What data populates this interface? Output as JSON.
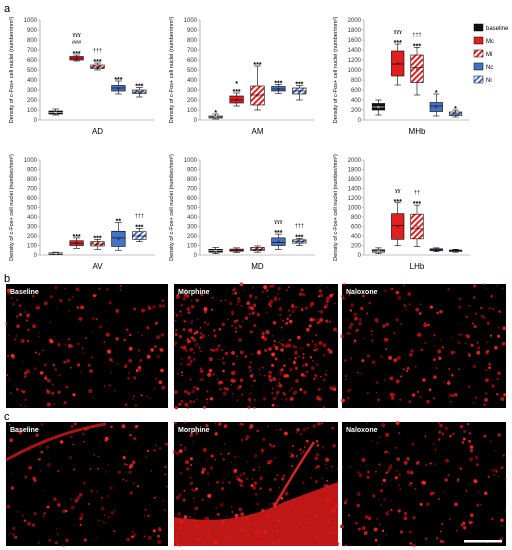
{
  "figure": {
    "panel_a_label": "a",
    "panel_b_label": "b",
    "panel_c_label": "c",
    "ylabel": "Density of c-Fos+ cell nuclei (number/mm²)"
  },
  "legend": [
    {
      "name": "baseline",
      "color": "#111111",
      "pattern": "solid"
    },
    {
      "name": "Mc",
      "color": "#e02020",
      "pattern": "solid"
    },
    {
      "name": "Mi",
      "color": "#e02020",
      "pattern": "hatch"
    },
    {
      "name": "Nc",
      "color": "#4472c4",
      "pattern": "solid"
    },
    {
      "name": "Ni",
      "color": "#4472c4",
      "pattern": "hatch"
    }
  ],
  "chart_data": [
    {
      "type": "box",
      "region": "AD",
      "ylim": [
        0,
        1000
      ],
      "yticks": [
        0,
        100,
        200,
        300,
        400,
        500,
        600,
        700,
        800,
        900,
        1000
      ],
      "groups": [
        {
          "name": "baseline",
          "median": 75,
          "q1": 60,
          "q3": 90,
          "min": 50,
          "max": 110,
          "sig": []
        },
        {
          "name": "Mc",
          "median": 620,
          "q1": 600,
          "q3": 635,
          "min": 590,
          "max": 650,
          "sig": [
            "***",
            "###",
            "ɣɣɣ"
          ]
        },
        {
          "name": "Mi",
          "median": 530,
          "q1": 515,
          "q3": 550,
          "min": 500,
          "max": 570,
          "sig": [
            "***",
            "†††"
          ]
        },
        {
          "name": "Nc",
          "median": 320,
          "q1": 290,
          "q3": 345,
          "min": 260,
          "max": 390,
          "sig": [
            "***"
          ]
        },
        {
          "name": "Ni",
          "median": 280,
          "q1": 265,
          "q3": 300,
          "min": 230,
          "max": 325,
          "sig": [
            "***"
          ]
        }
      ]
    },
    {
      "type": "box",
      "region": "AM",
      "ylim": [
        0,
        1000
      ],
      "yticks": [
        0,
        100,
        200,
        300,
        400,
        500,
        600,
        700,
        800,
        900,
        1000
      ],
      "groups": [
        {
          "name": "baseline",
          "median": 30,
          "q1": 20,
          "q3": 40,
          "min": 10,
          "max": 60,
          "sig": [
            "*"
          ]
        },
        {
          "name": "Mc",
          "median": 200,
          "q1": 170,
          "q3": 240,
          "min": 140,
          "max": 270,
          "sig": [
            "***",
            "*"
          ]
        },
        {
          "name": "Mi",
          "median": 250,
          "q1": 150,
          "q3": 340,
          "min": 100,
          "max": 540,
          "sig": [
            "***"
          ]
        },
        {
          "name": "Nc",
          "median": 310,
          "q1": 290,
          "q3": 335,
          "min": 265,
          "max": 355,
          "sig": [
            "***"
          ]
        },
        {
          "name": "Ni",
          "median": 290,
          "q1": 260,
          "q3": 320,
          "min": 200,
          "max": 345,
          "sig": [
            "***"
          ]
        }
      ]
    },
    {
      "type": "box",
      "region": "MHb",
      "ylim": [
        0,
        2000
      ],
      "yticks": [
        0,
        200,
        400,
        600,
        800,
        1000,
        1200,
        1400,
        1600,
        1800,
        2000
      ],
      "groups": [
        {
          "name": "baseline",
          "median": 260,
          "q1": 200,
          "q3": 330,
          "min": 100,
          "max": 400,
          "sig": []
        },
        {
          "name": "Mc",
          "median": 1120,
          "q1": 880,
          "q3": 1380,
          "min": 700,
          "max": 1520,
          "sig": [
            "***",
            "ɣɣɣ"
          ]
        },
        {
          "name": "Mi",
          "median": 1050,
          "q1": 750,
          "q3": 1300,
          "min": 500,
          "max": 1450,
          "sig": [
            "***",
            "†††"
          ]
        },
        {
          "name": "Nc",
          "median": 280,
          "q1": 170,
          "q3": 350,
          "min": 80,
          "max": 520,
          "sig": [
            "*"
          ]
        },
        {
          "name": "Ni",
          "median": 120,
          "q1": 90,
          "q3": 160,
          "min": 60,
          "max": 200,
          "sig": [
            "*"
          ]
        }
      ]
    },
    {
      "type": "box",
      "region": "AV",
      "ylim": [
        0,
        1000
      ],
      "yticks": [
        0,
        100,
        200,
        300,
        400,
        500,
        600,
        700,
        800,
        900,
        1000
      ],
      "groups": [
        {
          "name": "baseline",
          "median": 15,
          "q1": 10,
          "q3": 22,
          "min": 5,
          "max": 30,
          "sig": []
        },
        {
          "name": "Mc",
          "median": 125,
          "q1": 100,
          "q3": 150,
          "min": 70,
          "max": 180,
          "sig": [
            "***"
          ]
        },
        {
          "name": "Mi",
          "median": 115,
          "q1": 95,
          "q3": 140,
          "min": 60,
          "max": 165,
          "sig": [
            "***"
          ]
        },
        {
          "name": "Nc",
          "median": 180,
          "q1": 90,
          "q3": 250,
          "min": 50,
          "max": 340,
          "sig": [
            "**"
          ]
        },
        {
          "name": "Ni",
          "median": 200,
          "q1": 165,
          "q3": 245,
          "min": 140,
          "max": 280,
          "sig": [
            "***",
            "†††"
          ]
        }
      ]
    },
    {
      "type": "box",
      "region": "MD",
      "ylim": [
        0,
        1000
      ],
      "yticks": [
        0,
        100,
        200,
        300,
        400,
        500,
        600,
        700,
        800,
        900,
        1000
      ],
      "groups": [
        {
          "name": "baseline",
          "median": 45,
          "q1": 30,
          "q3": 60,
          "min": 15,
          "max": 80,
          "sig": []
        },
        {
          "name": "Mc",
          "median": 50,
          "q1": 40,
          "q3": 62,
          "min": 25,
          "max": 75,
          "sig": []
        },
        {
          "name": "Mi",
          "median": 60,
          "q1": 45,
          "q3": 80,
          "min": 30,
          "max": 95,
          "sig": []
        },
        {
          "name": "Nc",
          "median": 130,
          "q1": 100,
          "q3": 180,
          "min": 60,
          "max": 220,
          "sig": [
            "***",
            "ɣɣɣ"
          ]
        },
        {
          "name": "Ni",
          "median": 145,
          "q1": 125,
          "q3": 160,
          "min": 100,
          "max": 175,
          "sig": [
            "***",
            "†††"
          ]
        }
      ]
    },
    {
      "type": "box",
      "region": "LHb",
      "ylim": [
        0,
        2000
      ],
      "yticks": [
        0,
        200,
        400,
        600,
        800,
        1000,
        1200,
        1400,
        1600,
        1800,
        2000
      ],
      "groups": [
        {
          "name": "baseline",
          "median": 80,
          "q1": 60,
          "q3": 110,
          "min": 30,
          "max": 150,
          "sig": []
        },
        {
          "name": "Mc",
          "median": 620,
          "q1": 330,
          "q3": 870,
          "min": 200,
          "max": 1100,
          "sig": [
            "***",
            "ɣɣ"
          ]
        },
        {
          "name": "Mi",
          "median": 550,
          "q1": 340,
          "q3": 860,
          "min": 180,
          "max": 1050,
          "sig": [
            "***",
            "††"
          ]
        },
        {
          "name": "Nc",
          "median": 110,
          "q1": 90,
          "q3": 130,
          "min": 70,
          "max": 150,
          "sig": []
        },
        {
          "name": "Ni",
          "median": 90,
          "q1": 75,
          "q3": 105,
          "min": 60,
          "max": 120,
          "sig": []
        }
      ]
    }
  ],
  "micrographs": {
    "row_b": [
      "Baseline",
      "Morphine",
      "Naloxone"
    ],
    "row_c": [
      "Baseline",
      "Morphine",
      "Naloxone"
    ]
  }
}
